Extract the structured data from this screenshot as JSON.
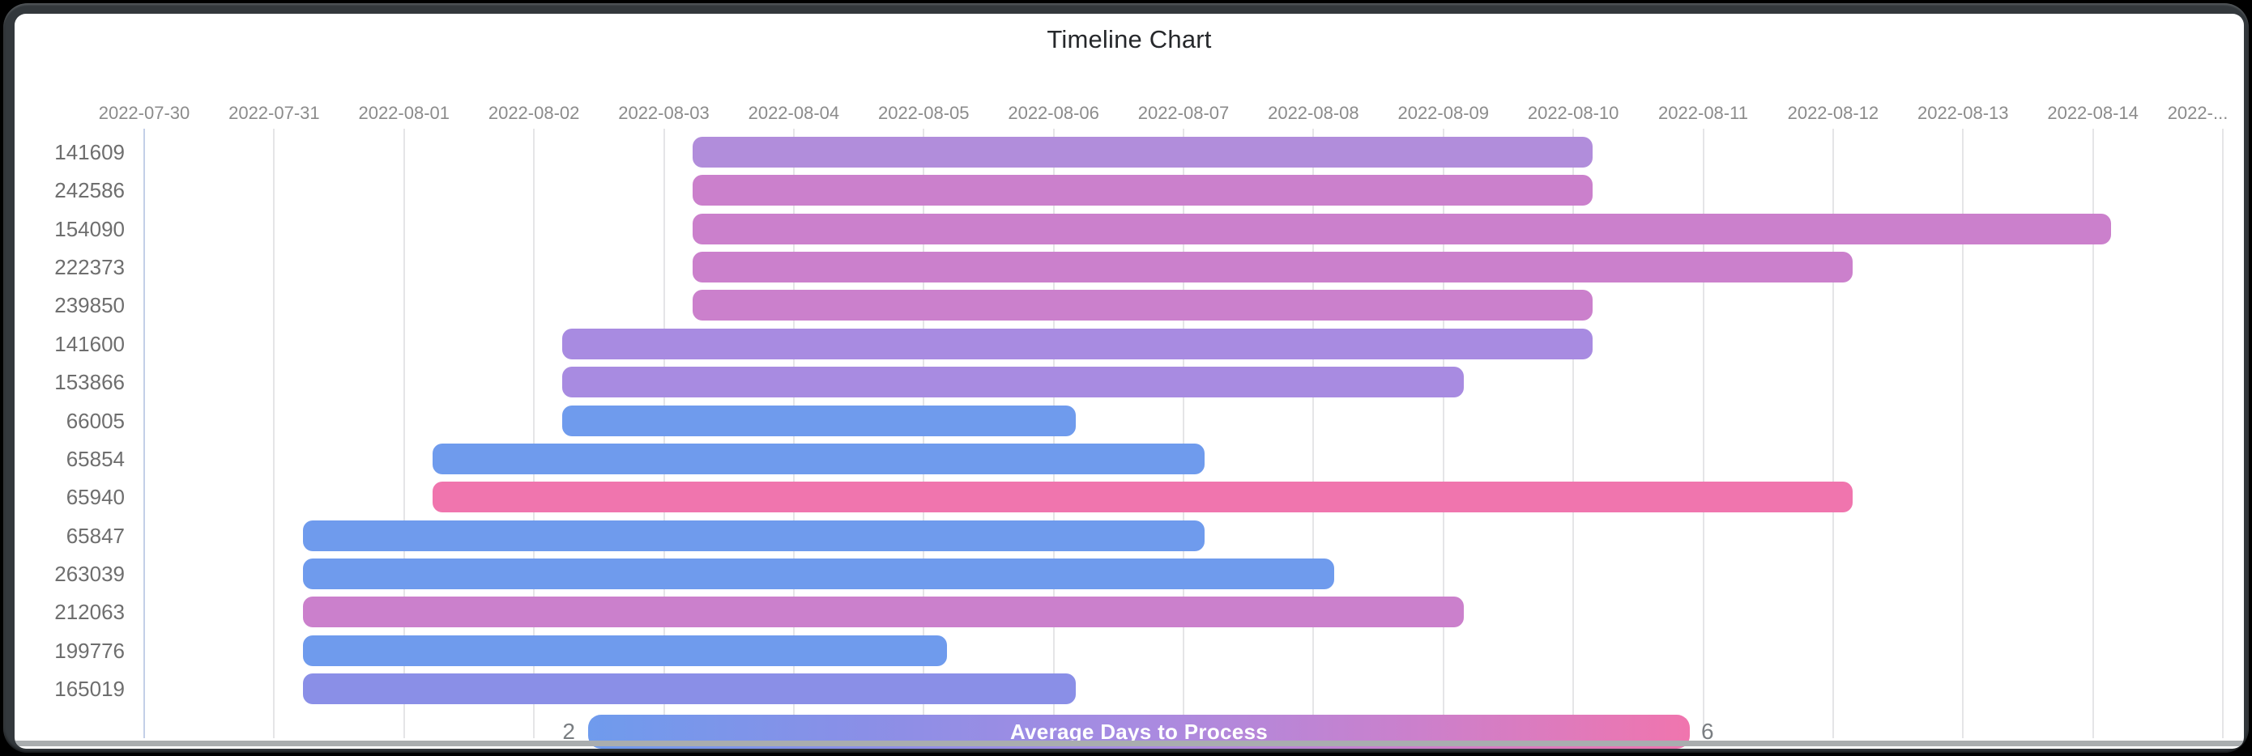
{
  "chart_data": {
    "type": "bar",
    "subtype": "timeline-gantt",
    "title": "Timeline Chart",
    "x_axis": {
      "start_date": "2022-07-30",
      "tick_labels": [
        "2022-07-30",
        "2022-07-31",
        "2022-08-01",
        "2022-08-02",
        "2022-08-03",
        "2022-08-04",
        "2022-08-05",
        "2022-08-06",
        "2022-08-07",
        "2022-08-08",
        "2022-08-09",
        "2022-08-10",
        "2022-08-11",
        "2022-08-12",
        "2022-08-13",
        "2022-08-14",
        "2022-..."
      ],
      "grid": true,
      "visible_span_days": 16.1
    },
    "rows": [
      {
        "id": "141609",
        "start_date": "2022-08-03",
        "end_date": "2022-08-10",
        "start_day": 4.22,
        "end_day": 11.15,
        "color": "#B18DDB"
      },
      {
        "id": "242586",
        "start_date": "2022-08-03",
        "end_date": "2022-08-10",
        "start_day": 4.22,
        "end_day": 11.15,
        "color": "#CB80CC"
      },
      {
        "id": "154090",
        "start_date": "2022-08-03",
        "end_date": "2022-08-14",
        "start_day": 4.22,
        "end_day": 15.14,
        "color": "#CB80CC"
      },
      {
        "id": "222373",
        "start_date": "2022-08-03",
        "end_date": "2022-08-12",
        "start_day": 4.22,
        "end_day": 13.15,
        "color": "#CB80CC"
      },
      {
        "id": "239850",
        "start_date": "2022-08-03",
        "end_date": "2022-08-10",
        "start_day": 4.22,
        "end_day": 11.15,
        "color": "#CB80CC"
      },
      {
        "id": "141600",
        "start_date": "2022-08-02",
        "end_date": "2022-08-10",
        "start_day": 3.22,
        "end_day": 11.15,
        "color": "#A88BE1"
      },
      {
        "id": "153866",
        "start_date": "2022-08-02",
        "end_date": "2022-08-09",
        "start_day": 3.22,
        "end_day": 10.16,
        "color": "#A88BE1"
      },
      {
        "id": "66005",
        "start_date": "2022-08-02",
        "end_date": "2022-08-06",
        "start_day": 3.22,
        "end_day": 7.17,
        "color": "#6F9BED"
      },
      {
        "id": "65854",
        "start_date": "2022-08-01",
        "end_date": "2022-08-07",
        "start_day": 2.22,
        "end_day": 8.16,
        "color": "#6F9BED"
      },
      {
        "id": "65940",
        "start_date": "2022-08-01",
        "end_date": "2022-08-12",
        "start_day": 2.22,
        "end_day": 13.15,
        "color": "#F075AE"
      },
      {
        "id": "65847",
        "start_date": "2022-07-31",
        "end_date": "2022-08-07",
        "start_day": 1.22,
        "end_day": 8.16,
        "color": "#6F9BED"
      },
      {
        "id": "263039",
        "start_date": "2022-07-31",
        "end_date": "2022-08-08",
        "start_day": 1.22,
        "end_day": 9.16,
        "color": "#6F9BED"
      },
      {
        "id": "212063",
        "start_date": "2022-07-31",
        "end_date": "2022-08-09",
        "start_day": 1.22,
        "end_day": 10.16,
        "color": "#CB80CC"
      },
      {
        "id": "199776",
        "start_date": "2022-07-31",
        "end_date": "2022-08-05",
        "start_day": 1.22,
        "end_day": 6.18,
        "color": "#6F9BED"
      },
      {
        "id": "165019",
        "start_date": "2022-07-31",
        "end_date": "2022-08-06",
        "start_day": 1.22,
        "end_day": 7.17,
        "color": "#8A8FE7"
      }
    ],
    "legend": {
      "label": "Average Days to Process",
      "min": "2",
      "max": "6",
      "position": "bottom",
      "gradient": [
        "#6F9BED",
        "#8A8FE7",
        "#A88BE1",
        "#CB80CC",
        "#F075AE"
      ]
    },
    "colors": {
      "grid_line": "#e5e5e7",
      "first_grid_line": "#c3cfe8",
      "axis_label": "#8b8b8b",
      "row_label": "#6e6e6e",
      "title_text": "#26282b",
      "card_background": "#ffffff",
      "frame": "#33383c",
      "scrollbar": "#a9adaf"
    }
  }
}
